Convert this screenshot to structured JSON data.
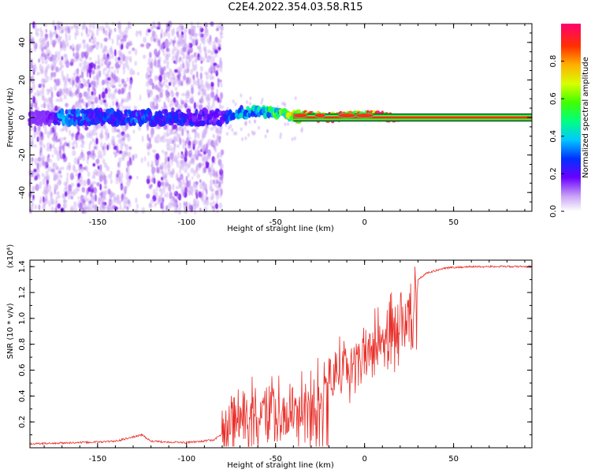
{
  "title": "C2E4.2022.354.03.58.R15",
  "chart_data": [
    {
      "type": "heatmap",
      "xlabel": "Height of straight line (km)",
      "ylabel": "Frequency (Hz)",
      "xlim": [
        -188,
        94
      ],
      "ylim": [
        -50,
        50
      ],
      "x_ticks": [
        -150,
        -100,
        -50,
        0,
        50
      ],
      "y_ticks": [
        -40,
        -20,
        0,
        20,
        40
      ],
      "colorbar": {
        "label": "Normalized spectral amplitude",
        "range": [
          0.0,
          1.0
        ],
        "ticks": [
          0.0,
          0.2,
          0.4,
          0.6,
          0.8
        ]
      },
      "signal": [
        {
          "x": -180,
          "y": 0,
          "amplitude": 0.1
        },
        {
          "x": -170,
          "y": 0,
          "amplitude": 0.35
        },
        {
          "x": -150,
          "y": 0,
          "amplitude": 0.25
        },
        {
          "x": -130,
          "y": 0,
          "amplitude": 0.3
        },
        {
          "x": -80,
          "y": 0,
          "amplitude": 0.2
        },
        {
          "x": -70,
          "y": 3,
          "amplitude": 0.4
        },
        {
          "x": -55,
          "y": 3,
          "amplitude": 0.45
        },
        {
          "x": -40,
          "y": 1,
          "amplitude": 0.7
        },
        {
          "x": -20,
          "y": 0,
          "amplitude": 0.9
        },
        {
          "x": 0,
          "y": 1,
          "amplitude": 0.85
        },
        {
          "x": 20,
          "y": 0,
          "amplitude": 0.9
        },
        {
          "x": 60,
          "y": 0,
          "amplitude": 0.9
        },
        {
          "x": 94,
          "y": 0,
          "amplitude": 0.9
        }
      ]
    },
    {
      "type": "line",
      "xlabel": "Height of straight line (km)",
      "ylabel": "SNR (10 * v/v)",
      "y_multiplier": "(x10⁴)",
      "xlim": [
        -188,
        94
      ],
      "ylim": [
        0,
        1.45
      ],
      "x_ticks": [
        -150,
        -100,
        -50,
        0,
        50
      ],
      "y_ticks": [
        0.2,
        0.4,
        0.6,
        0.8,
        1.0,
        1.2,
        1.4
      ],
      "series_color": "#e8302a",
      "x": [
        -188,
        -160,
        -140,
        -125,
        -120,
        -100,
        -85,
        -75,
        -65,
        -55,
        -45,
        -35,
        -25,
        -15,
        -5,
        5,
        15,
        25,
        35,
        45,
        60,
        80,
        94
      ],
      "y": [
        0.03,
        0.04,
        0.05,
        0.1,
        0.05,
        0.04,
        0.06,
        0.15,
        0.35,
        0.3,
        0.35,
        0.4,
        0.45,
        0.7,
        0.8,
        0.95,
        1.1,
        1.25,
        1.35,
        1.39,
        1.4,
        1.4,
        1.4
      ]
    }
  ]
}
